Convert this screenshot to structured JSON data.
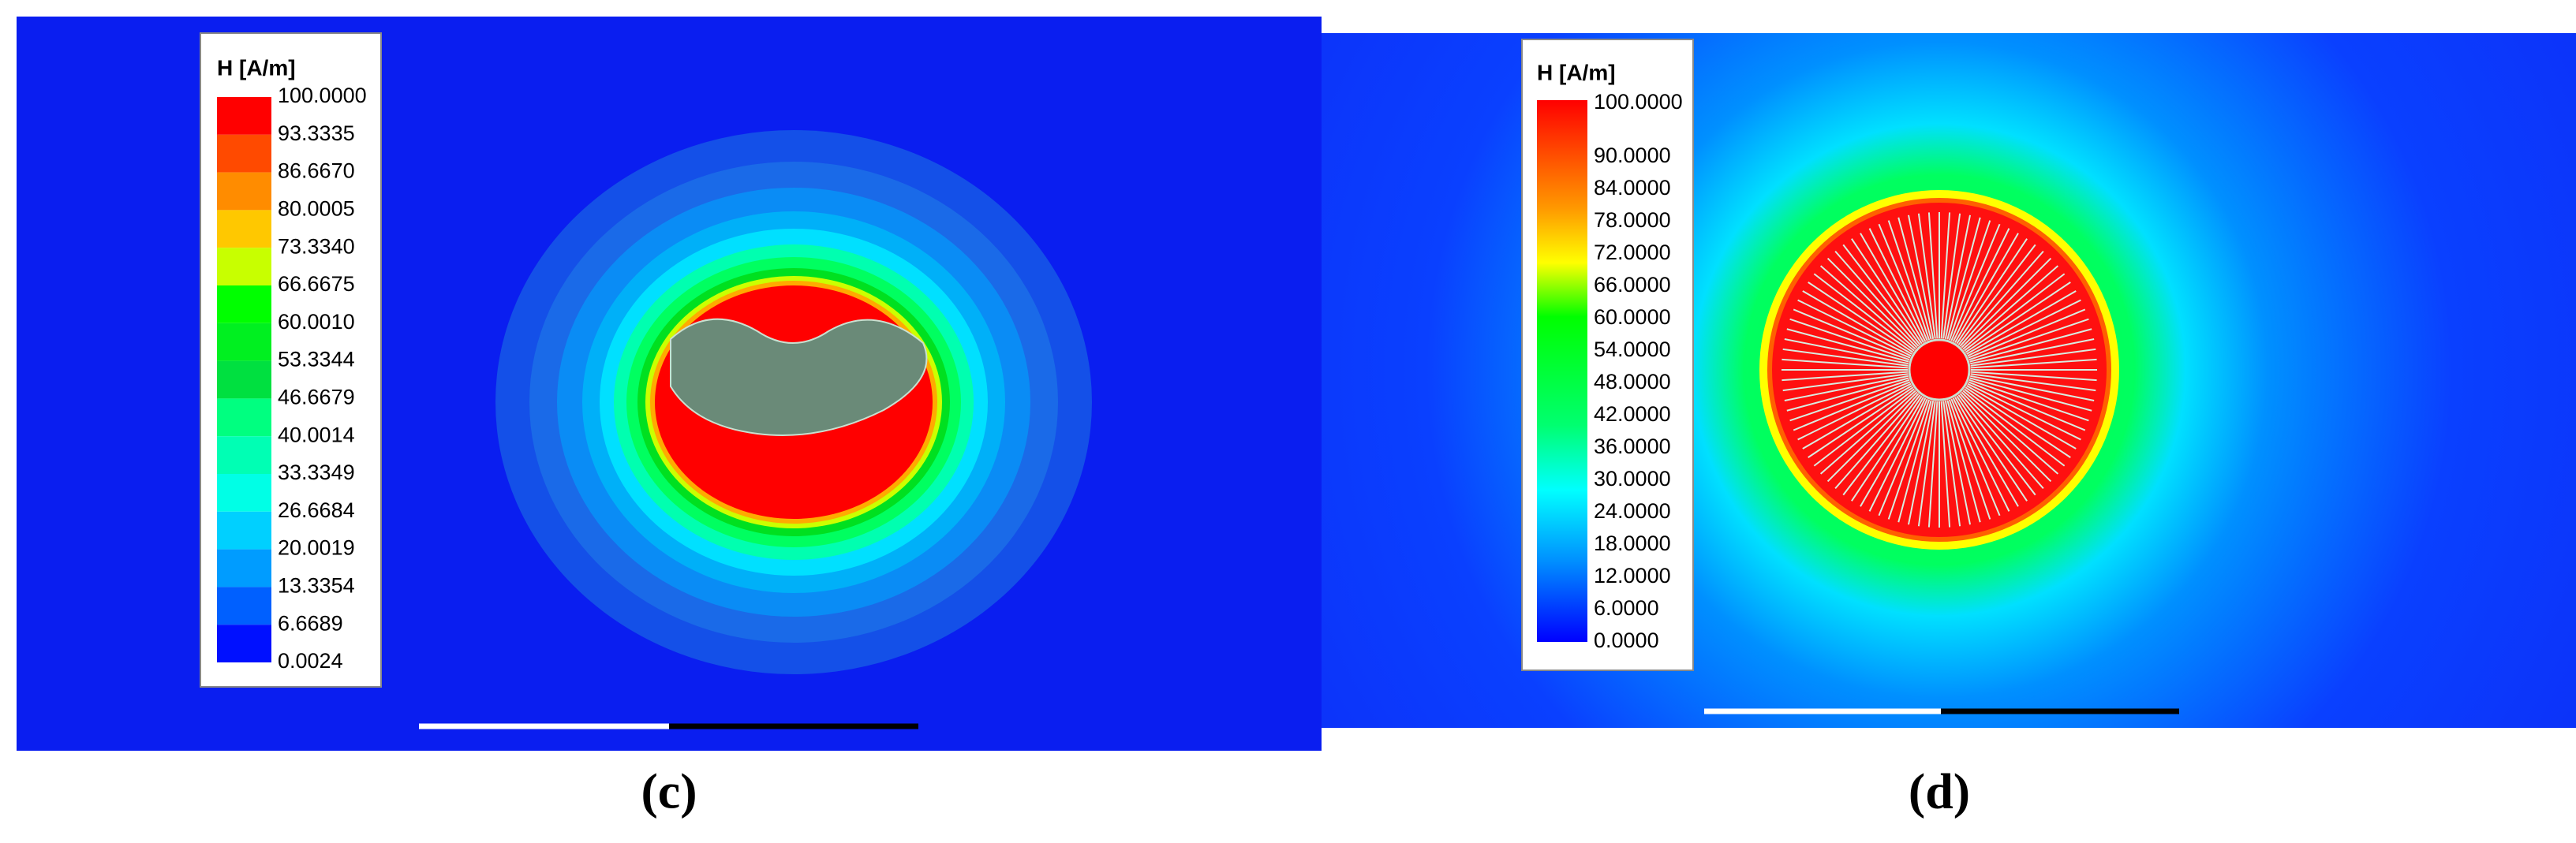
{
  "panels": [
    {
      "label": "(c)",
      "legend": {
        "title": "H [A/m]",
        "ticks": [
          "100.0000",
          "93.3335",
          "86.6670",
          "80.0005",
          "73.3340",
          "66.6675",
          "60.0010",
          "53.3344",
          "46.6679",
          "40.0014",
          "33.3349",
          "26.6684",
          "20.0019",
          "13.3354",
          "6.6689",
          "0.0024"
        ]
      }
    },
    {
      "label": "(d)",
      "legend": {
        "title": "H [A/m]",
        "ticks": [
          "100.0000",
          "90.0000",
          "84.0000",
          "78.0000",
          "72.0000",
          "66.0000",
          "60.0000",
          "54.0000",
          "48.0000",
          "42.0000",
          "36.0000",
          "30.0000",
          "24.0000",
          "18.0000",
          "12.0000",
          "6.0000",
          "0.0000"
        ]
      }
    }
  ]
}
